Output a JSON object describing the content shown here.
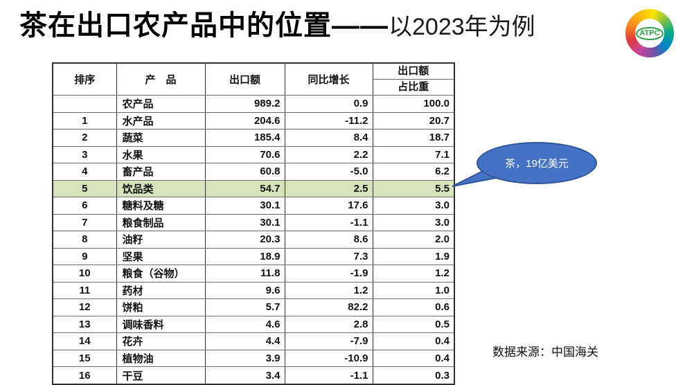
{
  "title": {
    "main": "茶在出口农产品中的位置——",
    "sub": "以2023年为例"
  },
  "logo": {
    "text": "ATPC",
    "text_color": "#2f9e3f",
    "ring_colors": [
      "#c5469b",
      "#e23a3c",
      "#f5821f",
      "#fdb913",
      "#ffe400",
      "#7ac143",
      "#00a78e",
      "#0083ca",
      "#7c51a1"
    ]
  },
  "table": {
    "headers": {
      "rank": "排序",
      "product": "产　品",
      "export": "出口额",
      "yoy": "同比增长",
      "share_line1": "出口额",
      "share_line2": "占比重"
    },
    "highlight_color": "#d6e3bc",
    "rows": [
      {
        "rank": "",
        "product": "农产品",
        "export": "989.2",
        "yoy": "0.9",
        "share": "100.0",
        "highlight": false
      },
      {
        "rank": "1",
        "product": "水产品",
        "export": "204.6",
        "yoy": "-11.2",
        "share": "20.7",
        "highlight": false
      },
      {
        "rank": "2",
        "product": "蔬菜",
        "export": "185.4",
        "yoy": "8.4",
        "share": "18.7",
        "highlight": false
      },
      {
        "rank": "3",
        "product": "水果",
        "export": "70.6",
        "yoy": "2.2",
        "share": "7.1",
        "highlight": false
      },
      {
        "rank": "4",
        "product": "畜产品",
        "export": "60.8",
        "yoy": "-5.0",
        "share": "6.2",
        "highlight": false
      },
      {
        "rank": "5",
        "product": "饮品类",
        "export": "54.7",
        "yoy": "2.5",
        "share": "5.5",
        "highlight": true
      },
      {
        "rank": "6",
        "product": "糖料及糖",
        "export": "30.1",
        "yoy": "17.6",
        "share": "3.0",
        "highlight": false
      },
      {
        "rank": "7",
        "product": "粮食制品",
        "export": "30.1",
        "yoy": "-1.1",
        "share": "3.0",
        "highlight": false
      },
      {
        "rank": "8",
        "product": "油籽",
        "export": "20.3",
        "yoy": "8.6",
        "share": "2.0",
        "highlight": false
      },
      {
        "rank": "9",
        "product": "坚果",
        "export": "18.9",
        "yoy": "7.3",
        "share": "1.9",
        "highlight": false
      },
      {
        "rank": "10",
        "product": "粮食（谷物）",
        "export": "11.8",
        "yoy": "-1.9",
        "share": "1.2",
        "highlight": false
      },
      {
        "rank": "11",
        "product": "药材",
        "export": "9.6",
        "yoy": "1.2",
        "share": "1.0",
        "highlight": false
      },
      {
        "rank": "12",
        "product": "饼粕",
        "export": "5.7",
        "yoy": "82.2",
        "share": "0.6",
        "highlight": false
      },
      {
        "rank": "13",
        "product": "调味香料",
        "export": "4.6",
        "yoy": "2.8",
        "share": "0.5",
        "highlight": false
      },
      {
        "rank": "14",
        "product": "花卉",
        "export": "4.4",
        "yoy": "-7.9",
        "share": "0.4",
        "highlight": false
      },
      {
        "rank": "15",
        "product": "植物油",
        "export": "3.9",
        "yoy": "-10.9",
        "share": "0.4",
        "highlight": false
      },
      {
        "rank": "16",
        "product": "干豆",
        "export": "3.4",
        "yoy": "-1.1",
        "share": "0.3",
        "highlight": false
      }
    ]
  },
  "callout": {
    "text": "茶，19亿美元",
    "fill_color": "#4472c4",
    "border_color": "#2f5597"
  },
  "source": {
    "text": "数据来源：中国海关"
  }
}
